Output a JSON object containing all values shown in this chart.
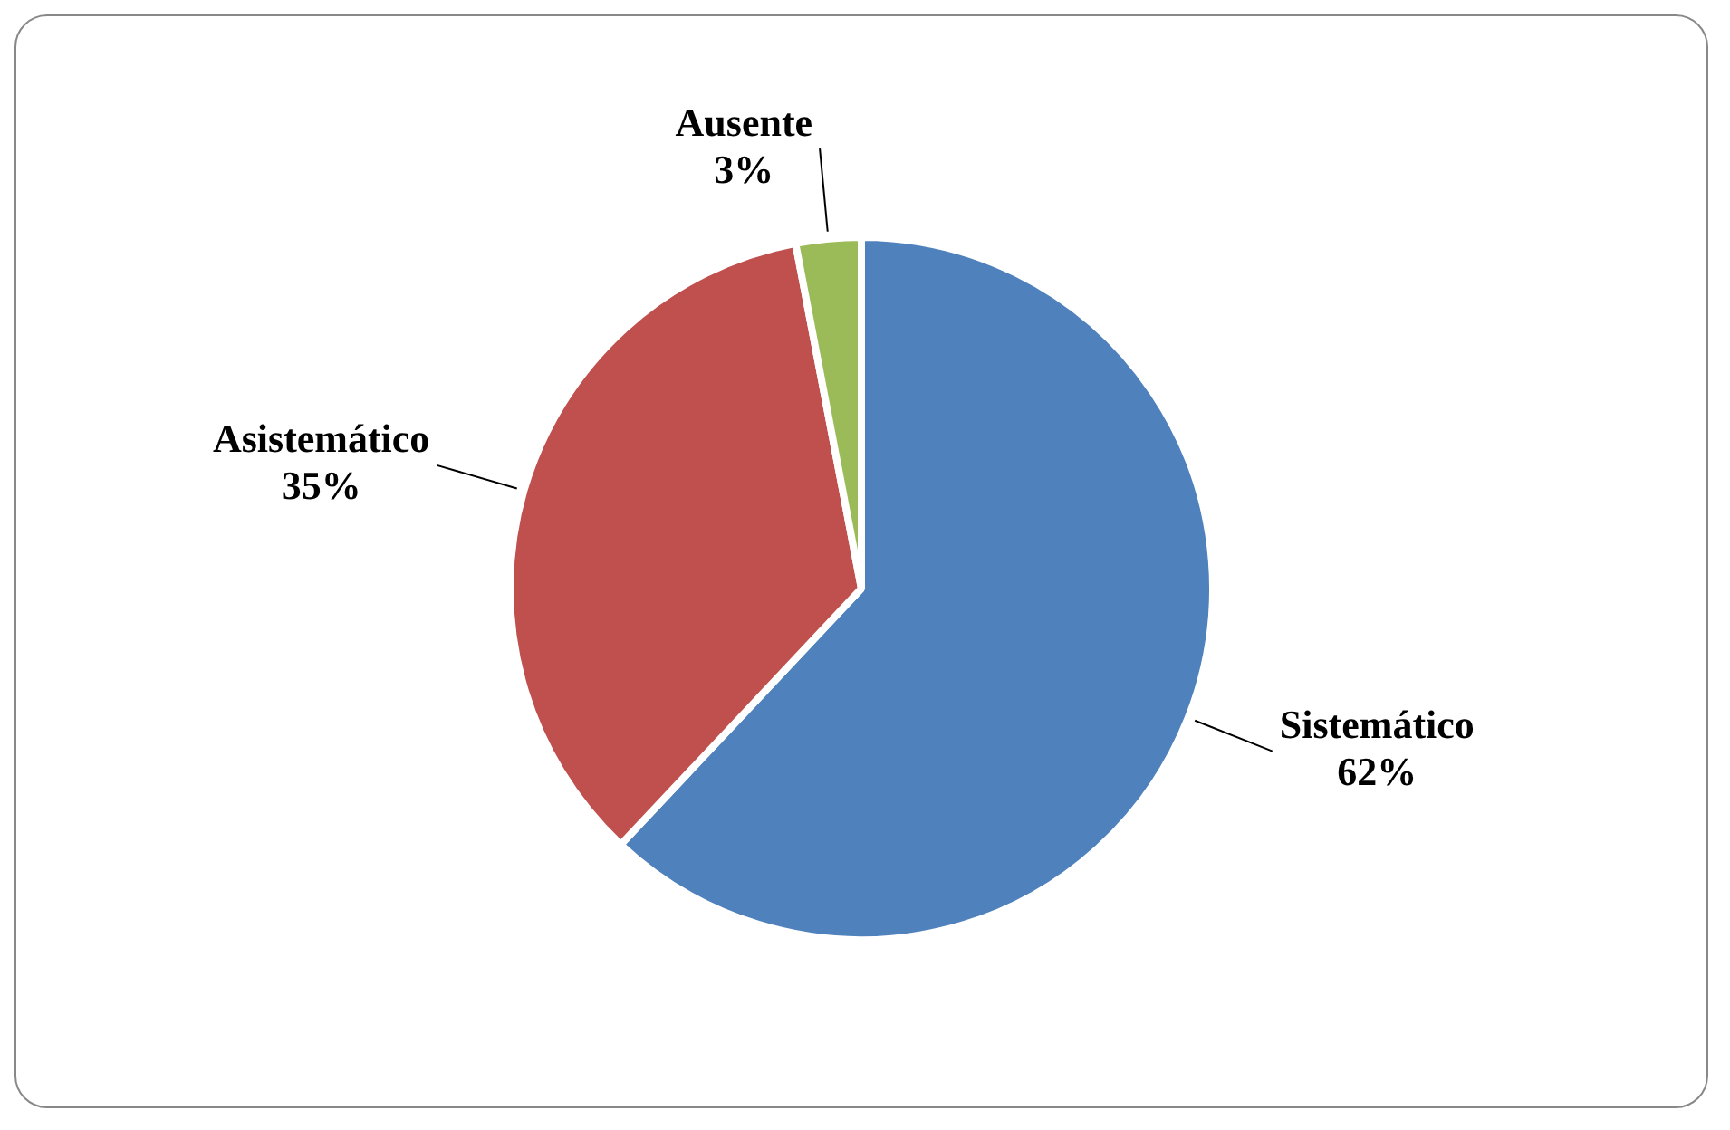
{
  "chart_data": {
    "type": "pie",
    "categories": [
      "Sistemático",
      "Asistemático",
      "Ausente"
    ],
    "values": [
      62,
      35,
      3
    ],
    "colors": [
      "#4f81bd",
      "#c0504d",
      "#9bbb59"
    ],
    "value_labels": [
      "62%",
      "35%",
      "3%"
    ],
    "legend": false
  }
}
